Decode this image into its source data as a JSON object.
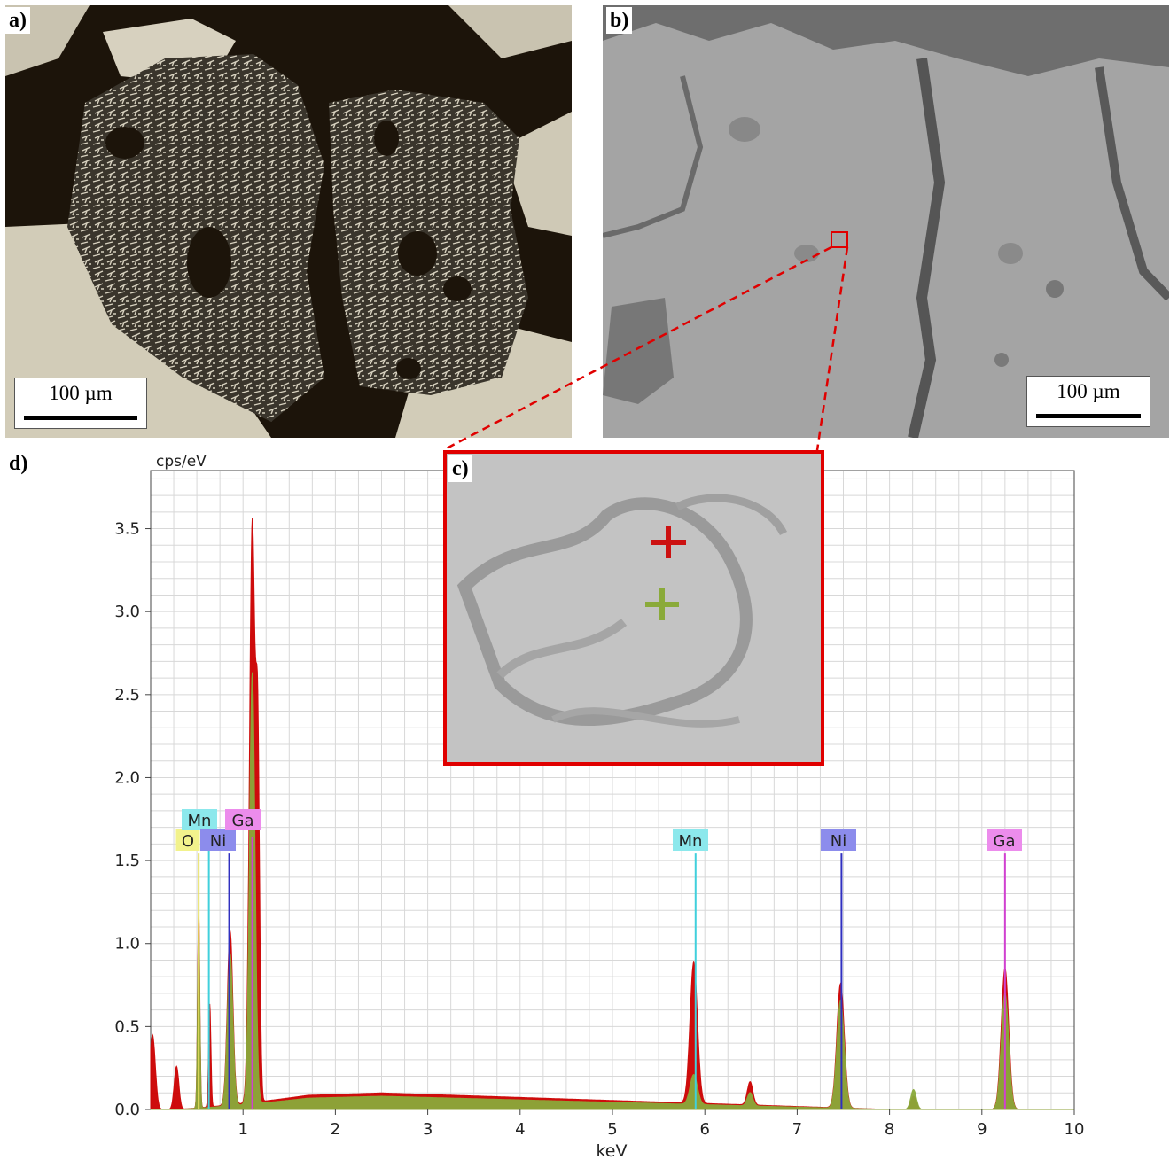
{
  "panels": {
    "a": {
      "label": "a)",
      "scale_text": "100 µm"
    },
    "b": {
      "label": "b)",
      "scale_text": "100 µm"
    },
    "c": {
      "label": "c)"
    },
    "d": {
      "label": "d)"
    }
  },
  "colors": {
    "O": "#f2f28c",
    "Mn": "#8ce8ec",
    "Ni": "#8c8cec",
    "Ga": "#ec8cec",
    "spectrum_red": "#cc0000",
    "spectrum_green": "#8aaa3a",
    "marker_red": "#cc1111",
    "marker_green": "#8aaa3a"
  },
  "chart_data": {
    "type": "area",
    "ylabel": "cps/eV",
    "xlabel": "keV",
    "xlim": [
      0,
      10
    ],
    "ylim": [
      0,
      3.85
    ],
    "x_ticks": [
      "1",
      "2",
      "3",
      "4",
      "5",
      "6",
      "7",
      "8",
      "9",
      "10"
    ],
    "y_ticks": [
      "0.0",
      "0.5",
      "1.0",
      "1.5",
      "2.0",
      "2.5",
      "3.0",
      "3.5"
    ],
    "grid": true,
    "series": [
      {
        "color_key": "spectrum_red",
        "peaks": [
          [
            0.02,
            0.45,
            0.03
          ],
          [
            0.28,
            0.26,
            0.025
          ],
          [
            0.52,
            1.2,
            0.012
          ],
          [
            0.64,
            0.62,
            0.012
          ],
          [
            0.86,
            1.05,
            0.03
          ],
          [
            1.1,
            3.5,
            0.03
          ],
          [
            1.16,
            2.0,
            0.02
          ],
          [
            5.88,
            0.85,
            0.04
          ],
          [
            6.49,
            0.14,
            0.03
          ],
          [
            7.47,
            0.75,
            0.04
          ],
          [
            8.26,
            0.08,
            0.03
          ],
          [
            9.25,
            0.85,
            0.04
          ]
        ],
        "background": 0.1
      },
      {
        "color_key": "spectrum_green",
        "peaks": [
          [
            0.52,
            1.1,
            0.012
          ],
          [
            0.86,
            0.92,
            0.03
          ],
          [
            1.1,
            2.6,
            0.03
          ],
          [
            5.88,
            0.18,
            0.04
          ],
          [
            6.49,
            0.08,
            0.03
          ],
          [
            7.47,
            0.65,
            0.04
          ],
          [
            8.26,
            0.12,
            0.03
          ],
          [
            9.25,
            0.7,
            0.04
          ]
        ],
        "background": 0.08
      }
    ],
    "element_lines": [
      {
        "element": "O",
        "x": 0.52,
        "y": 1.5
      },
      {
        "element": "Mn",
        "x": 0.63,
        "y": 1.6
      },
      {
        "element": "Ni",
        "x": 0.85,
        "y": 1.5
      },
      {
        "element": "Ga",
        "x": 1.1,
        "y": 1.6
      },
      {
        "element": "Mn",
        "x": 5.9,
        "y": 1.5
      },
      {
        "element": "Ni",
        "x": 7.48,
        "y": 1.5
      },
      {
        "element": "Ga",
        "x": 9.25,
        "y": 1.5
      }
    ]
  }
}
